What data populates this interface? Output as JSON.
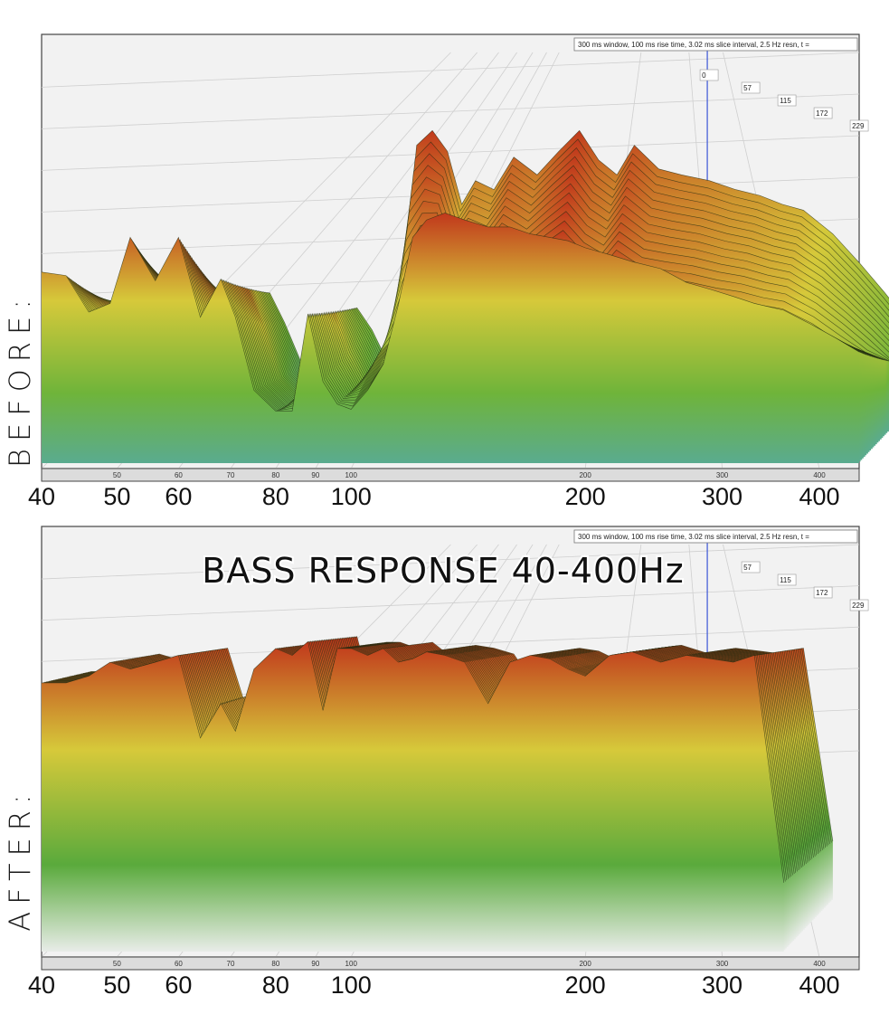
{
  "chart_data": [
    {
      "type": "area",
      "panel_label": "BEFORE:",
      "info": "300 ms window, 100 ms rise time, 3.02 ms slice interval, 2.5 Hz resn, t =",
      "x_scale": "log",
      "x_range_hz": [
        40,
        450
      ],
      "small_ticks": [
        "50",
        "60",
        "70",
        "80",
        "90",
        "100",
        "200",
        "300",
        "400"
      ],
      "big_ticks": [
        "40",
        "50",
        "60",
        "80",
        "100",
        "200",
        "300",
        "400"
      ],
      "time_ticks_ms": [
        "0",
        "57",
        "115",
        "172",
        "229"
      ],
      "surface": {
        "x_hz": [
          40,
          43,
          46,
          49,
          52,
          56,
          60,
          64,
          68,
          71,
          75,
          80,
          84,
          88,
          92,
          96,
          100,
          105,
          110,
          115,
          120,
          125,
          132,
          140,
          150,
          160,
          170,
          180,
          190,
          200,
          215,
          230,
          250,
          270,
          290,
          310,
          330,
          360,
          390,
          420,
          450
        ],
        "front_slice": [
          0.55,
          0.72,
          0.75,
          0.73,
          0.74,
          0.75,
          0.74,
          0.78,
          0.8,
          0.6,
          0.3,
          0.15,
          0.6,
          0.7,
          0.55,
          0.35,
          0.65,
          0.75,
          0.6,
          0.5,
          0.65,
          0.7,
          0.72,
          0.7,
          0.68,
          0.68,
          0.66,
          0.65,
          0.64,
          0.62,
          0.6,
          0.58,
          0.56,
          0.52,
          0.5,
          0.48,
          0.46,
          0.44,
          0.4,
          0.36,
          0.32
        ],
        "back_peaks": [
          0.0,
          0.0,
          0.0,
          0.0,
          0.0,
          0.0,
          0.0,
          0.0,
          0.0,
          0.0,
          0.0,
          0.0,
          0.0,
          0.0,
          0.0,
          0.0,
          0.0,
          0.9,
          0.95,
          0.88,
          0.7,
          0.78,
          0.75,
          0.86,
          0.8,
          0.88,
          0.95,
          0.85,
          0.8,
          0.9,
          0.82,
          0.8,
          0.78,
          0.75,
          0.73,
          0.7,
          0.68,
          0.6,
          0.5,
          0.4,
          0.3
        ],
        "dips": [
          0.0,
          0.2,
          0.35,
          0.3,
          0.1,
          0.25,
          0.1,
          0.4,
          0.3,
          0.2,
          0.1,
          0.0,
          0.5,
          0.3,
          0.35,
          0.2,
          0.55,
          0.6,
          0.35,
          0.05,
          0.0,
          0.0,
          0.0,
          0.0,
          0.0,
          0.0,
          0.0,
          0.0,
          0.0,
          0.0,
          0.0,
          0.0,
          0.0,
          0.0,
          0.0,
          0.0,
          0.0,
          0.0,
          0.0,
          0.0,
          0.0
        ],
        "colors": {
          "high": "#c1381c",
          "mid": "#d6c93a",
          "low": "#6fb43a",
          "floor": "#5aab8f"
        }
      }
    },
    {
      "type": "area",
      "panel_label": "AFTER:",
      "headline": "BASS RESPONSE 40-400Hz",
      "info": "300 ms window, 100 ms rise time, 3.02 ms slice interval, 2.5 Hz resn, t =",
      "x_scale": "log",
      "x_range_hz": [
        40,
        450
      ],
      "small_ticks": [
        "50",
        "60",
        "70",
        "80",
        "90",
        "100",
        "200",
        "300",
        "400"
      ],
      "big_ticks": [
        "40",
        "50",
        "60",
        "80",
        "100",
        "200",
        "300",
        "400"
      ],
      "time_ticks_ms": [
        "57",
        "115",
        "172",
        "229"
      ],
      "surface": {
        "x_hz": [
          40,
          43,
          46,
          49,
          52,
          56,
          60,
          64,
          68,
          71,
          75,
          80,
          84,
          88,
          92,
          96,
          100,
          105,
          110,
          115,
          120,
          125,
          132,
          140,
          150,
          160,
          170,
          180,
          190,
          200,
          215,
          230,
          250,
          270,
          290,
          310,
          330,
          360
        ],
        "front_slice": [
          0.78,
          0.78,
          0.8,
          0.84,
          0.82,
          0.84,
          0.86,
          0.62,
          0.72,
          0.64,
          0.82,
          0.88,
          0.86,
          0.9,
          0.7,
          0.88,
          0.88,
          0.86,
          0.88,
          0.84,
          0.85,
          0.87,
          0.86,
          0.84,
          0.72,
          0.84,
          0.86,
          0.85,
          0.82,
          0.8,
          0.86,
          0.87,
          0.84,
          0.86,
          0.85,
          0.84,
          0.86,
          0.2
        ],
        "colors": {
          "high": "#c1381c",
          "mid": "#d6c93a",
          "low": "#5aaa3c",
          "floor": "#e8ece8"
        }
      }
    }
  ]
}
